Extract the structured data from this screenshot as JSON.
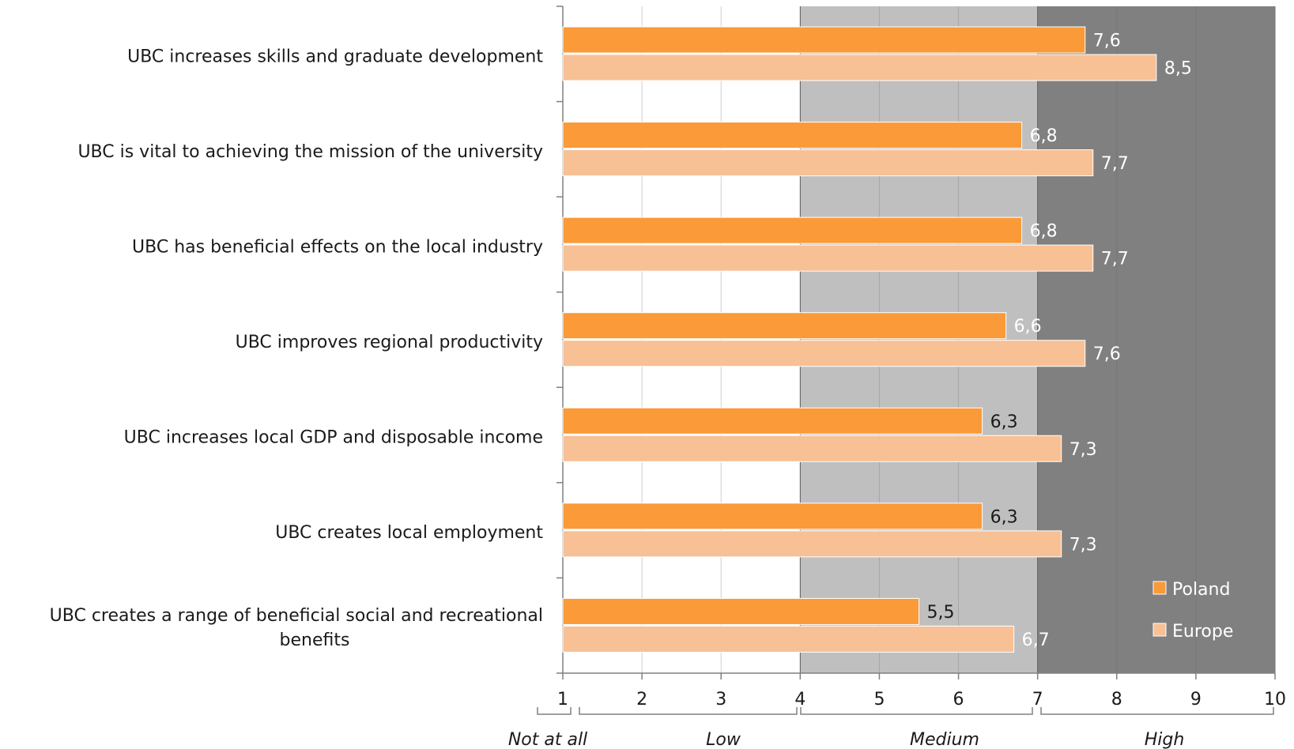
{
  "chart_data": {
    "type": "bar",
    "orientation": "horizontal",
    "categories": [
      "UBC increases skills and graduate development",
      "UBC is vital to achieving the mission of the university",
      "UBC has beneficial effects on the local industry",
      "UBC improves regional productivity",
      "UBC increases local GDP and disposable income",
      "UBC creates local employment",
      "UBC creates a range of beneficial social and recreational benefits"
    ],
    "series": [
      {
        "name": "Poland",
        "values": [
          7.6,
          6.8,
          6.8,
          6.6,
          6.3,
          6.3,
          5.5
        ],
        "labels": [
          "7,6",
          "6,8",
          "6,8",
          "6,6",
          "6,3",
          "6,3",
          "5,5"
        ],
        "color": "#fa9a38"
      },
      {
        "name": "Europe",
        "values": [
          8.5,
          7.7,
          7.7,
          7.6,
          7.3,
          7.3,
          6.7
        ],
        "labels": [
          "8,5",
          "7,7",
          "7,7",
          "7,6",
          "7,3",
          "7,3",
          "6,7"
        ],
        "color": "#f8c095"
      }
    ],
    "xlim": [
      1,
      10
    ],
    "x_ticks": [
      "1",
      "2",
      "3",
      "4",
      "5",
      "6",
      "7",
      "8",
      "9",
      "10"
    ],
    "bands": [
      {
        "label": "Not at all",
        "from": 1,
        "to": 1.1,
        "color": "#ffffff"
      },
      {
        "label": "Low",
        "from": 1.1,
        "to": 4,
        "color": "#ffffff"
      },
      {
        "label": "Medium",
        "from": 4,
        "to": 7,
        "color": "#bfbfbf"
      },
      {
        "label": "High",
        "from": 7,
        "to": 10,
        "color": "#808080"
      }
    ],
    "grid": true,
    "legend_position": "bottom-right"
  }
}
